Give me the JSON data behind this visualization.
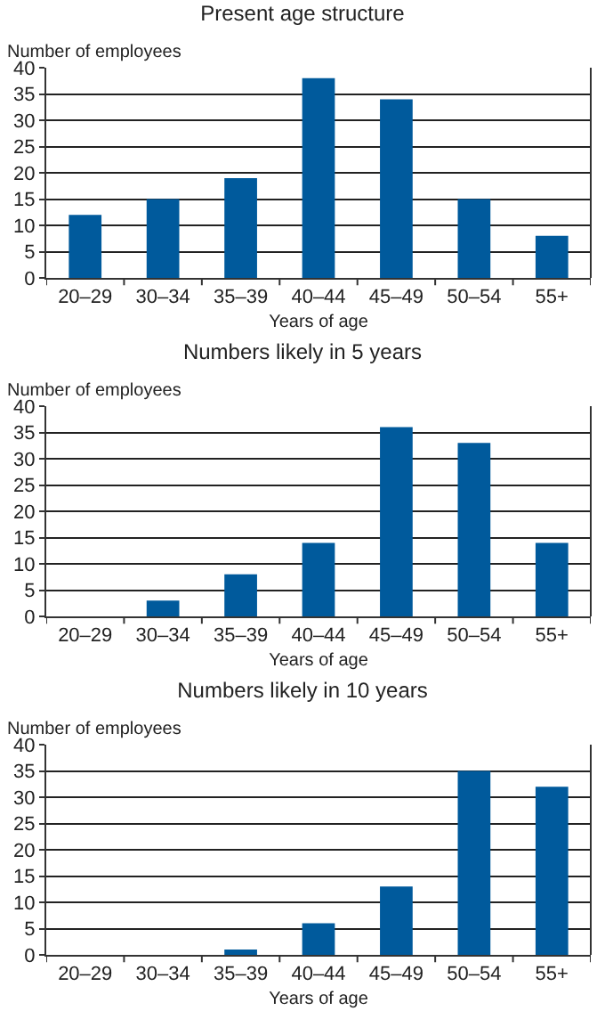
{
  "chart_data": [
    {
      "type": "bar",
      "title": "Present age structure",
      "xlabel": "Years of age",
      "ylabel": "Number of employees",
      "categories": [
        "20–29",
        "30–34",
        "35–39",
        "40–44",
        "45–49",
        "50–54",
        "55+"
      ],
      "values": [
        12,
        15,
        19,
        38,
        34,
        15,
        8
      ],
      "color": "#005a9c",
      "ylim": [
        0,
        40
      ],
      "yticks": [
        0,
        5,
        10,
        15,
        20,
        25,
        30,
        35,
        40
      ],
      "grid": "y"
    },
    {
      "type": "bar",
      "title": "Numbers likely in 5 years",
      "xlabel": "Years of age",
      "ylabel": "Number of employees",
      "categories": [
        "20–29",
        "30–34",
        "35–39",
        "40–44",
        "45–49",
        "50–54",
        "55+"
      ],
      "values": [
        0,
        3,
        8,
        14,
        36,
        33,
        14
      ],
      "color": "#005a9c",
      "ylim": [
        0,
        40
      ],
      "yticks": [
        0,
        5,
        10,
        15,
        20,
        25,
        30,
        35,
        40
      ],
      "grid": "y"
    },
    {
      "type": "bar",
      "title": "Numbers likely in 10 years",
      "xlabel": "Years of age",
      "ylabel": "Number of employees",
      "categories": [
        "20–29",
        "30–34",
        "35–39",
        "40–44",
        "45–49",
        "50–54",
        "55+"
      ],
      "values": [
        0,
        0,
        1,
        6,
        13,
        35,
        32
      ],
      "color": "#005a9c",
      "ylim": [
        0,
        40
      ],
      "yticks": [
        0,
        5,
        10,
        15,
        20,
        25,
        30,
        35,
        40
      ],
      "grid": "y"
    }
  ]
}
